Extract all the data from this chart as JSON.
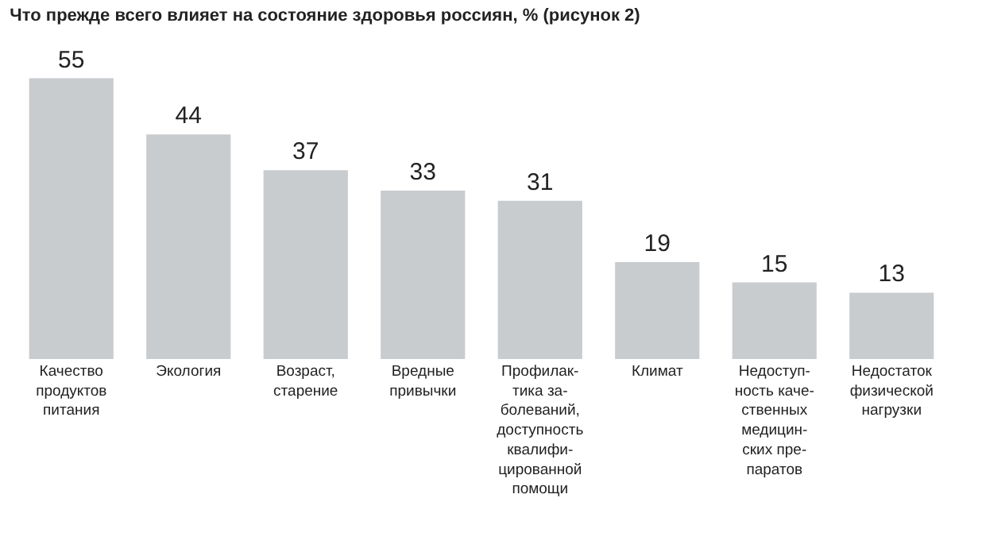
{
  "chart_data": {
    "type": "bar",
    "title": "Что прежде всего влияет на состояние здоровья россиян, % (рисунок 2)",
    "categories": [
      "Качество\nпродуктов\nпитания",
      "Экология",
      "Возраст,\nстарение",
      "Вредные\nпривычки",
      "Профилак-\nтика за-\nболеваний,\nдоступность\nквалифи-\nцированной\nпомощи",
      "Климат",
      "Недоступ-\nность каче-\nственных\nмедицин-\nских пре-\nпаратов",
      "Недостаток\nфизической\nнагрузки"
    ],
    "values": [
      55,
      44,
      37,
      33,
      31,
      19,
      15,
      13
    ],
    "color": "#c9cccf",
    "data_labels": true
  }
}
